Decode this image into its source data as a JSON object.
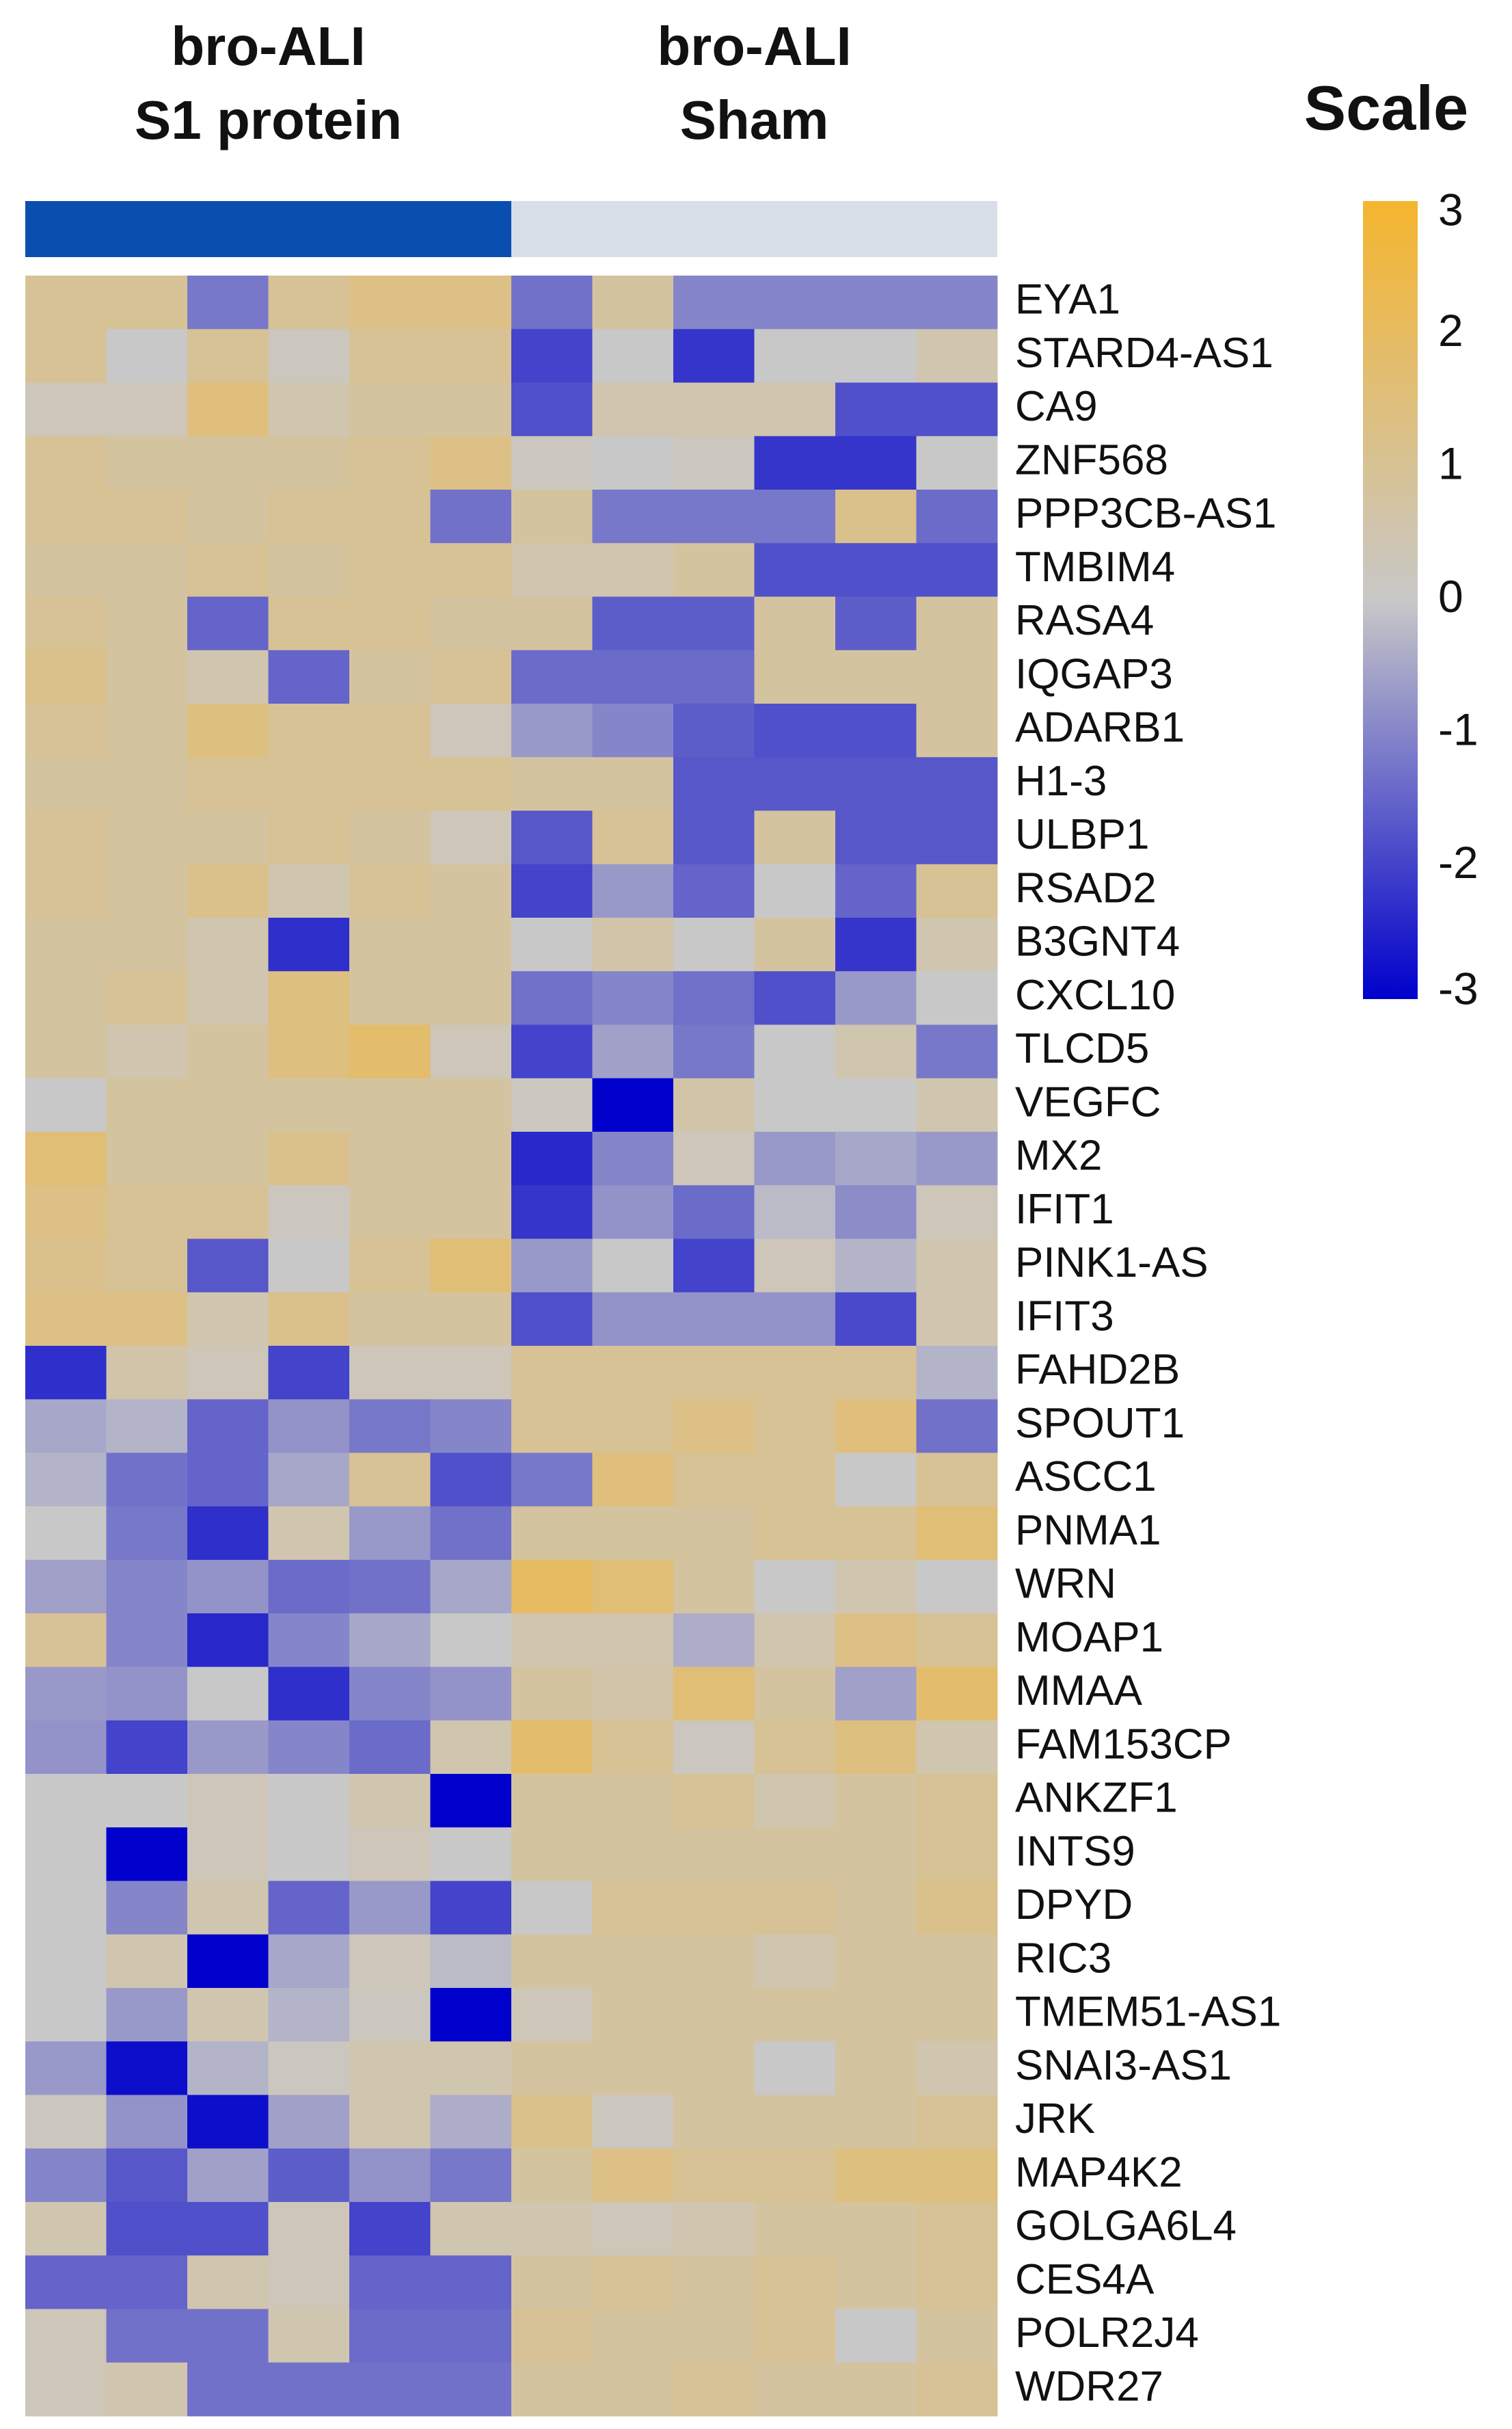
{
  "chart_data": {
    "type": "heatmap",
    "legend_title": "Scale",
    "groups": [
      {
        "name": "bro-ALI\nS1 protein",
        "color": "#0a4fb0"
      },
      {
        "name": "bro-ALI\nSham",
        "color": "#d8dee8"
      }
    ],
    "rows": [
      "EYA1",
      "STARD4-AS1",
      "CA9",
      "ZNF568",
      "PPP3CB-AS1",
      "TMBIM4",
      "RASA4",
      "IQGAP3",
      "ADARB1",
      "H1-3",
      "ULBP1",
      "RSAD2",
      "B3GNT4",
      "CXCL10",
      "TLCD5",
      "VEGFC",
      "MX2",
      "IFIT1",
      "PINK1-AS",
      "IFIT3",
      "FAHD2B",
      "SPOUT1",
      "ASCC1",
      "PNMA1",
      "WRN",
      "MOAP1",
      "MMAA",
      "FAM153CP",
      "ANKZF1",
      "INTS9",
      "DPYD",
      "RIC3",
      "TMEM51-AS1",
      "SNAI3-AS1",
      "JRK",
      "MAP4K2",
      "GOLGA6L4",
      "CES4A",
      "POLR2J4",
      "WDR27"
    ],
    "values": [
      [
        1,
        1,
        -1.2,
        1,
        1.3,
        1.3,
        -1.3,
        0.8,
        -1,
        -1,
        -1,
        -1
      ],
      [
        1,
        0,
        1,
        0.2,
        1,
        1,
        -2,
        0,
        -2.2,
        0,
        0,
        0.5
      ],
      [
        0.3,
        0.3,
        1.5,
        0.5,
        0.8,
        0.8,
        -1.8,
        0.5,
        0.5,
        0.5,
        -1.8,
        -1.8
      ],
      [
        1,
        0.8,
        0.8,
        0.8,
        1,
        1.3,
        0.2,
        0,
        0.2,
        -2.2,
        -2.2,
        0
      ],
      [
        1,
        1,
        0.8,
        1,
        1,
        -1.3,
        0.8,
        -1.2,
        -1.2,
        -1.2,
        1.2,
        -1.4
      ],
      [
        0.8,
        0.8,
        1,
        0.8,
        1,
        1,
        0.5,
        0.5,
        0.8,
        -1.8,
        -1.8,
        -1.8
      ],
      [
        1,
        0.8,
        -1.5,
        1,
        1,
        0.8,
        0.8,
        -1.6,
        -1.6,
        0.8,
        -1.6,
        0.8
      ],
      [
        1.2,
        0.8,
        0.5,
        -1.5,
        0.8,
        1,
        -1.4,
        -1.4,
        -1.4,
        0.8,
        0.8,
        0.8
      ],
      [
        1,
        0.8,
        1.4,
        1,
        1,
        0.3,
        -0.7,
        -1,
        -1.6,
        -1.8,
        -1.8,
        0.8
      ],
      [
        0.8,
        0.8,
        1,
        1,
        1,
        1,
        0.8,
        0.8,
        -1.7,
        -1.7,
        -1.7,
        -1.7
      ],
      [
        1,
        0.8,
        0.8,
        1,
        0.8,
        0.3,
        -1.7,
        1,
        -1.7,
        0.8,
        -1.7,
        -1.7
      ],
      [
        1,
        0.8,
        1.2,
        0.5,
        1,
        0.8,
        -2,
        -0.7,
        -1.5,
        0,
        -1.5,
        1
      ],
      [
        0.8,
        0.8,
        0.5,
        -2.3,
        0.8,
        0.8,
        0,
        0.6,
        0,
        0.8,
        -2.2,
        0.5
      ],
      [
        0.8,
        1,
        0.5,
        1.4,
        0.8,
        0.8,
        -1.3,
        -1,
        -1.3,
        -1.8,
        -0.7,
        0
      ],
      [
        0.8,
        0.5,
        0.8,
        1.4,
        1.8,
        0.3,
        -2,
        -0.6,
        -1.2,
        0,
        0.5,
        -1.2
      ],
      [
        0,
        0.8,
        0.8,
        0.8,
        0.8,
        0.8,
        0.2,
        -3,
        0.6,
        0,
        0,
        0.5
      ],
      [
        1.6,
        0.8,
        0.8,
        1.2,
        0.8,
        0.8,
        -2.4,
        -1,
        0.3,
        -0.7,
        -0.5,
        -0.7
      ],
      [
        1.3,
        1,
        1,
        0.2,
        0.8,
        0.8,
        -2.2,
        -0.8,
        -1.4,
        -0.2,
        -0.9,
        0.3
      ],
      [
        1.2,
        1,
        -1.7,
        0,
        1,
        1.6,
        -0.7,
        0,
        -2,
        0.3,
        -0.3,
        0.5
      ],
      [
        1.3,
        1.3,
        0.5,
        1.2,
        0.8,
        0.8,
        -1.8,
        -0.8,
        -0.8,
        -0.8,
        -1.9,
        0.5
      ],
      [
        -2.3,
        0.6,
        0.3,
        -2,
        0.3,
        0.3,
        1,
        1,
        1,
        1,
        1,
        -0.3
      ],
      [
        -0.5,
        -0.3,
        -1.5,
        -0.8,
        -1.2,
        -1,
        1,
        1,
        1.3,
        1,
        1.5,
        -1.3
      ],
      [
        -0.3,
        -1.3,
        -1.5,
        -0.5,
        1,
        -1.8,
        -1.2,
        1.5,
        1,
        1,
        0,
        1
      ],
      [
        0,
        -1.2,
        -2.3,
        0.5,
        -0.7,
        -1.3,
        0.8,
        0.8,
        0.8,
        1,
        1,
        1.6
      ],
      [
        -0.6,
        -1,
        -0.8,
        -1.4,
        -1.3,
        -0.5,
        2,
        1.6,
        0.8,
        0,
        0.5,
        0
      ],
      [
        1,
        -1,
        -2.4,
        -1,
        -0.5,
        0,
        0.5,
        0.5,
        -0.4,
        0.5,
        1.3,
        1
      ],
      [
        -0.7,
        -0.8,
        0,
        -2.3,
        -1,
        -0.8,
        0.8,
        0.6,
        1.6,
        0.8,
        -0.6,
        1.8
      ],
      [
        -0.8,
        -2,
        -0.7,
        -1,
        -1.4,
        0.5,
        1.8,
        1,
        0.2,
        1,
        1.4,
        0.5
      ],
      [
        0,
        0,
        0.3,
        0,
        0.5,
        -3,
        0.8,
        0.8,
        1,
        0.5,
        0.8,
        1
      ],
      [
        0,
        -3,
        0.3,
        0,
        0.3,
        0,
        0.8,
        0.8,
        0.8,
        0.8,
        0.8,
        1
      ],
      [
        0,
        -1,
        0.5,
        -1.5,
        -0.7,
        -2,
        0,
        1,
        1,
        1,
        0.8,
        1.2
      ],
      [
        0,
        0.5,
        -3,
        -0.5,
        0.3,
        -0.2,
        0.8,
        0.8,
        0.8,
        0.5,
        0.8,
        0.8
      ],
      [
        0,
        -0.7,
        0.5,
        -0.3,
        0.2,
        -3,
        0.3,
        0.8,
        0.8,
        0.8,
        0.8,
        0.8
      ],
      [
        -0.7,
        -2.8,
        -0.3,
        0.2,
        0.5,
        0.5,
        0.8,
        0.8,
        0.8,
        0,
        0.8,
        0.5
      ],
      [
        0.2,
        -0.8,
        -2.8,
        -0.6,
        0.5,
        -0.4,
        1.2,
        0.2,
        0.8,
        0.8,
        0.8,
        1
      ],
      [
        -1,
        -1.7,
        -0.6,
        -1.6,
        -0.8,
        -1.2,
        0.8,
        1.3,
        1,
        1,
        1.4,
        1.4
      ],
      [
        0.5,
        -1.8,
        -1.8,
        0.3,
        -2,
        0.5,
        0.5,
        0.3,
        0.5,
        0.8,
        0.8,
        1
      ],
      [
        -1.5,
        -1.5,
        0.5,
        0.3,
        -1.5,
        -1.5,
        0.8,
        1,
        0.8,
        1,
        0.8,
        1
      ],
      [
        0.3,
        -1.3,
        -1.3,
        0.5,
        -1.4,
        -1.4,
        1,
        0.8,
        0.8,
        1,
        0,
        0.8
      ],
      [
        0.3,
        0.5,
        -1.3,
        -1.3,
        -1.3,
        -1.3,
        0.8,
        0.8,
        1,
        0.8,
        0.8,
        1
      ]
    ],
    "colors": [
      "#0000cc",
      "#c8c8c8",
      "#f5b52e"
    ],
    "scale_lim": [
      -3,
      3
    ],
    "scale_ticks": [
      3,
      2,
      1,
      0,
      -1,
      -2,
      -3
    ]
  }
}
